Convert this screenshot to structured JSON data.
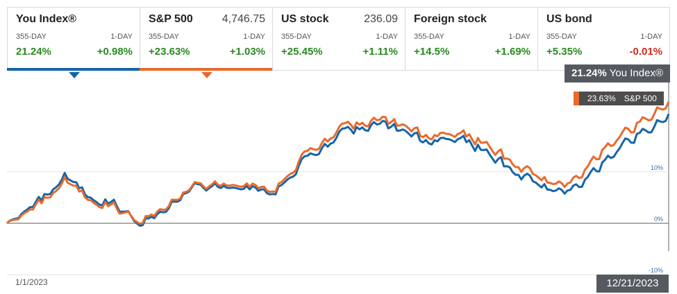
{
  "tiles": [
    {
      "name": "You Index®",
      "price": "",
      "period_label": "355-DAY",
      "day_label": "1-DAY",
      "period_change": "21.24%",
      "day_change": "+0.98%",
      "period_dir": "pos",
      "day_dir": "pos",
      "color": "#1565a8",
      "selected": true
    },
    {
      "name": "S&P 500",
      "price": "4,746.75",
      "period_label": "355-DAY",
      "day_label": "1-DAY",
      "period_change": "+23.63%",
      "day_change": "+1.03%",
      "period_dir": "pos",
      "day_dir": "pos",
      "color": "#e86a2c",
      "selected": true
    },
    {
      "name": "US stock",
      "price": "236.09",
      "period_label": "355-DAY",
      "day_label": "1-DAY",
      "period_change": "+25.45%",
      "day_change": "+1.11%",
      "period_dir": "pos",
      "day_dir": "pos",
      "color": "",
      "selected": false
    },
    {
      "name": "Foreign stock",
      "price": "",
      "period_label": "355-DAY",
      "day_label": "1-DAY",
      "period_change": "+14.5%",
      "day_change": "+1.69%",
      "period_dir": "pos",
      "day_dir": "pos",
      "color": "",
      "selected": false
    },
    {
      "name": "US bond",
      "price": "",
      "period_label": "355-DAY",
      "day_label": "1-DAY",
      "period_change": "+5.35%",
      "day_change": "-0.01%",
      "period_dir": "pos",
      "day_dir": "neg",
      "color": "",
      "selected": false
    }
  ],
  "end_labels": {
    "main_value": "21.24%",
    "main_name": "You Index®",
    "secondary_value": "23.63%",
    "secondary_name": "S&P 500"
  },
  "x_axis": {
    "start": "1/1/2023",
    "end": "12/21/2023"
  },
  "chart_data": {
    "type": "line",
    "ylim": [
      -10,
      25
    ],
    "y_ticks": [
      "10%",
      "0%",
      "-10%"
    ],
    "y_tick_values": [
      10,
      0,
      -10
    ],
    "grid": true,
    "x": [
      "2023-01-01",
      "2023-01-15",
      "2023-02-01",
      "2023-02-15",
      "2023-03-01",
      "2023-03-13",
      "2023-03-25",
      "2023-04-10",
      "2023-05-01",
      "2023-05-25",
      "2023-06-12",
      "2023-06-30",
      "2023-07-20",
      "2023-07-31",
      "2023-08-15",
      "2023-09-01",
      "2023-09-15",
      "2023-10-01",
      "2023-10-27",
      "2023-11-15",
      "2023-12-01",
      "2023-12-14",
      "2023-12-21"
    ],
    "series": [
      {
        "name": "You Index®",
        "color": "#1565a8",
        "values": [
          0,
          3.5,
          9,
          5,
          3.5,
          0.3,
          2.5,
          7.5,
          7,
          6.5,
          13,
          17.5,
          19.5,
          18,
          15.5,
          16.5,
          14,
          9.5,
          5.5,
          11.5,
          16.5,
          19,
          21.24
        ]
      },
      {
        "name": "S&P 500",
        "color": "#e86a2c",
        "values": [
          0,
          3,
          8.2,
          4.5,
          3,
          0.7,
          3,
          7.7,
          7.5,
          7,
          14,
          18.5,
          20.3,
          19,
          16.5,
          17.5,
          15.5,
          11,
          6.8,
          14,
          18.5,
          21.5,
          23.63
        ]
      }
    ]
  }
}
